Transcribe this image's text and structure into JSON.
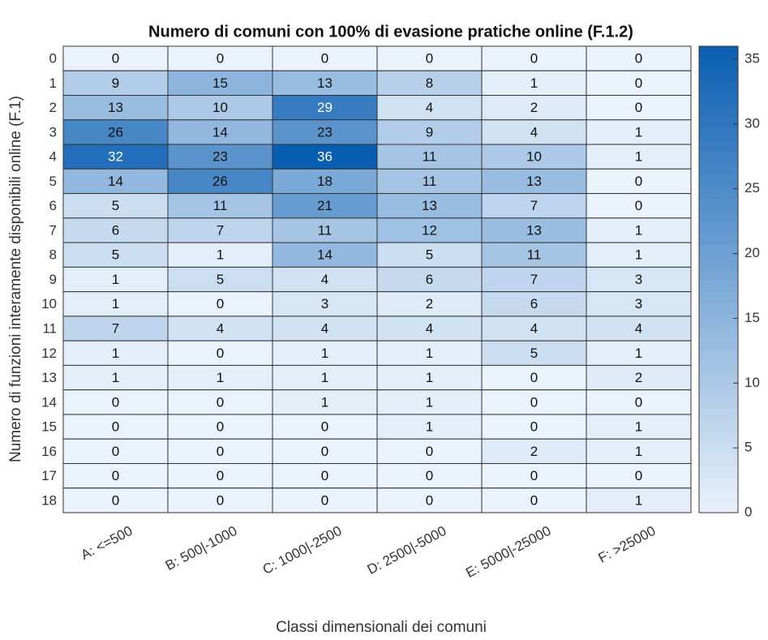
{
  "chart_data": {
    "type": "heatmap",
    "title": "Numero di comuni con 100% di evasione pratiche online (F.1.2)",
    "x_label": "Classi dimensionali dei comuni",
    "y_label": "Numero di funzioni interamente disponibili online (F.1)",
    "categories": [
      "A: <=500",
      "B: 500|-1000",
      "C: 1000|-2500",
      "D: 2500|-5000",
      "E: 5000|-25000",
      "F: >25000"
    ],
    "y_categories": [
      0,
      1,
      2,
      3,
      4,
      5,
      6,
      7,
      8,
      9,
      10,
      11,
      12,
      13,
      14,
      15,
      16,
      17,
      18
    ],
    "values": [
      [
        0,
        0,
        0,
        0,
        0,
        0
      ],
      [
        9,
        15,
        13,
        8,
        1,
        0
      ],
      [
        13,
        10,
        29,
        4,
        2,
        0
      ],
      [
        26,
        14,
        23,
        9,
        4,
        1
      ],
      [
        32,
        23,
        36,
        11,
        10,
        1
      ],
      [
        14,
        26,
        18,
        11,
        13,
        0
      ],
      [
        5,
        11,
        21,
        13,
        7,
        0
      ],
      [
        6,
        7,
        11,
        12,
        13,
        1
      ],
      [
        5,
        1,
        14,
        5,
        11,
        1
      ],
      [
        1,
        5,
        4,
        6,
        7,
        3
      ],
      [
        1,
        0,
        3,
        2,
        6,
        3
      ],
      [
        7,
        4,
        4,
        4,
        4,
        4
      ],
      [
        1,
        0,
        1,
        1,
        5,
        1
      ],
      [
        1,
        1,
        1,
        1,
        0,
        2
      ],
      [
        0,
        0,
        1,
        1,
        0,
        0
      ],
      [
        0,
        0,
        0,
        1,
        0,
        1
      ],
      [
        0,
        0,
        0,
        0,
        2,
        1
      ],
      [
        0,
        0,
        0,
        0,
        0,
        0
      ],
      [
        0,
        0,
        0,
        0,
        0,
        1
      ]
    ],
    "colormap": [
      "#eaf2fb",
      "#0a5eb2"
    ],
    "clim": [
      0,
      36
    ],
    "cticks": [
      0,
      5,
      10,
      15,
      20,
      25,
      30,
      35
    ]
  }
}
